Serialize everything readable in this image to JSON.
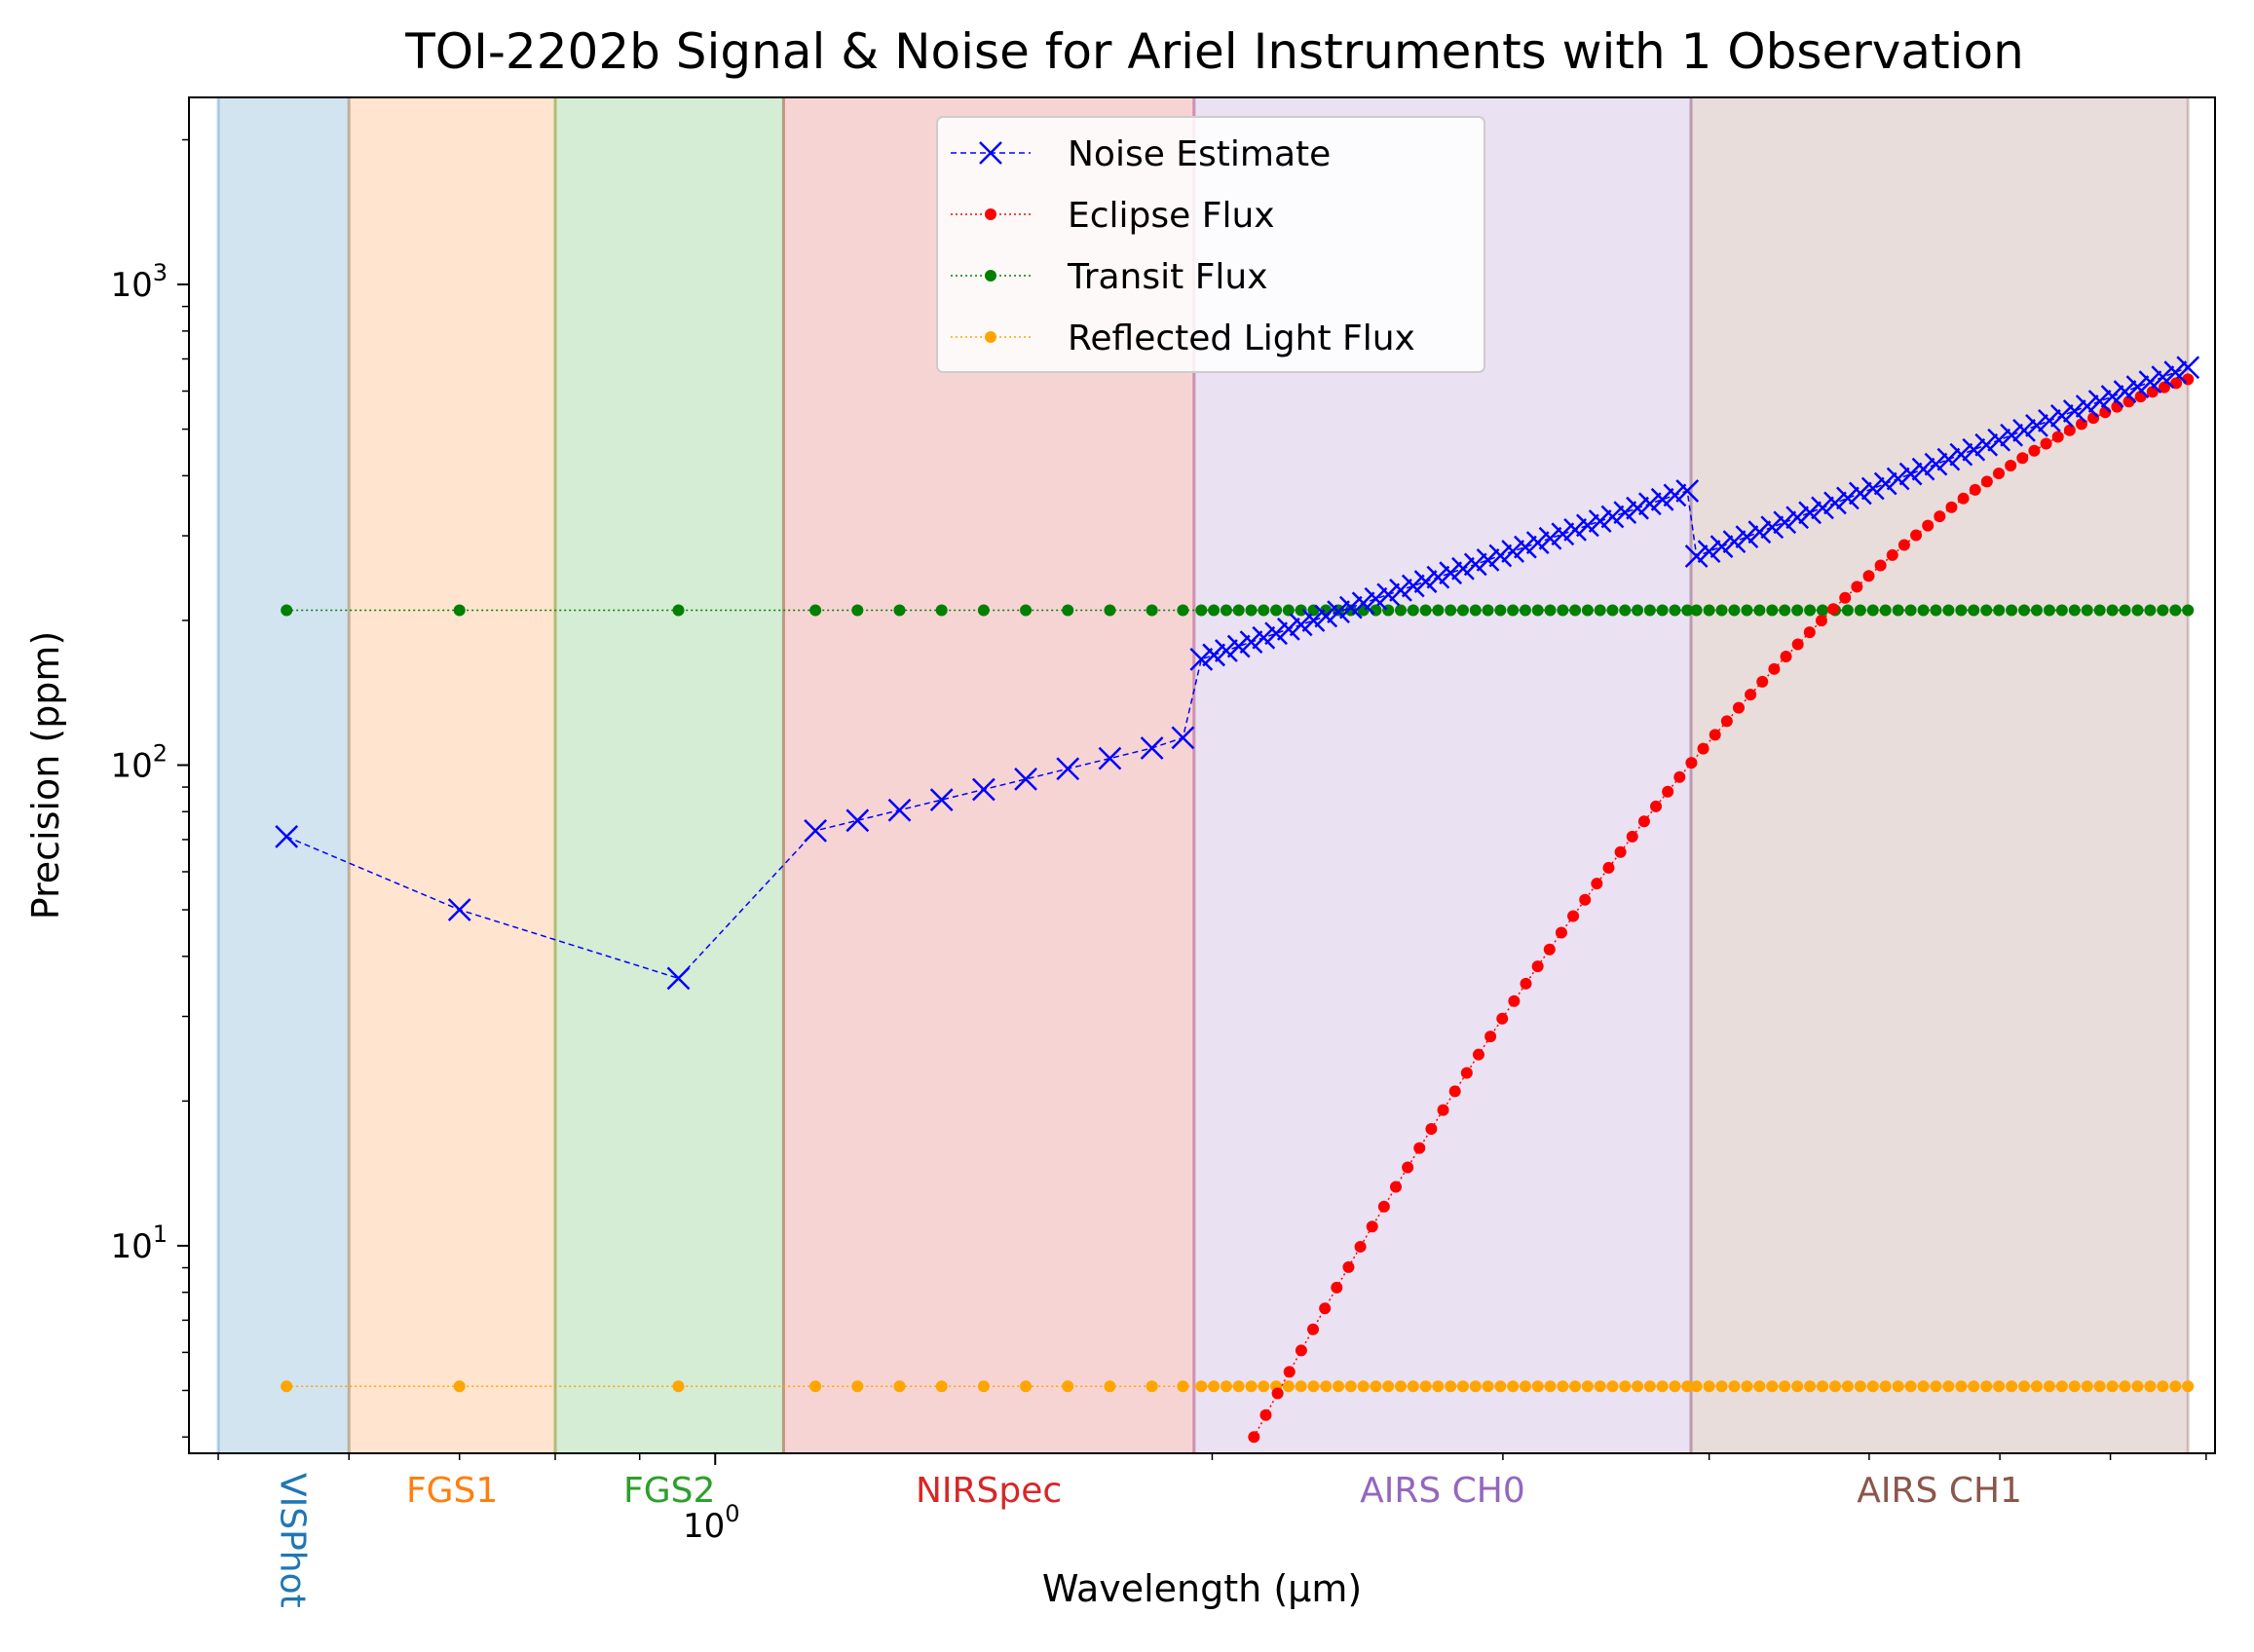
{
  "chart_data": {
    "type": "line",
    "title": "TOI-2202b Signal & Noise for Ariel Instruments with 1 Observation",
    "xlabel": "Wavelength (μm)",
    "ylabel": "Precision (ppm)",
    "xscale": "log",
    "yscale": "log",
    "xlim": [
      0.48,
      8.1
    ],
    "ylim": [
      3.7,
      2450
    ],
    "grid": false,
    "legend_position": "upper-center",
    "x_tick_labels": [
      {
        "value": 1,
        "base": "10",
        "exp": "0"
      }
    ],
    "y_tick_labels": [
      {
        "value": 10,
        "base": "10",
        "exp": "1"
      },
      {
        "value": 100,
        "base": "10",
        "exp": "2"
      },
      {
        "value": 1000,
        "base": "10",
        "exp": "3"
      }
    ],
    "bands": [
      {
        "name": "VISPhot",
        "xmin": 0.5,
        "xmax": 0.6,
        "color": "#1f77b4",
        "label_rotated": true
      },
      {
        "name": "FGS1",
        "xmin": 0.6,
        "xmax": 0.8,
        "color": "#ff7f0e"
      },
      {
        "name": "FGS2",
        "xmin": 0.8,
        "xmax": 1.1,
        "color": "#2ca02c"
      },
      {
        "name": "NIRSpec",
        "xmin": 1.1,
        "xmax": 1.95,
        "color": "#d62728"
      },
      {
        "name": "AIRS CH0",
        "xmin": 1.95,
        "xmax": 3.9,
        "color": "#9467bd"
      },
      {
        "name": "AIRS CH1",
        "xmin": 3.9,
        "xmax": 7.8,
        "color": "#8c564b"
      }
    ],
    "series": [
      {
        "name": "Noise Estimate",
        "color": "#0000ff",
        "marker": "x",
        "linestyle": "dashed",
        "segments": [
          {
            "x": [
              0.55,
              0.7,
              0.95
            ],
            "y": [
              71,
              50,
              36
            ]
          },
          {
            "x": [
              1.15,
              1.95
            ],
            "y_start": 73,
            "y_end": 114,
            "count": 10
          },
          {
            "x": [
              1.95,
              3.9
            ],
            "y_start": 166,
            "y_end": 372,
            "count": 40
          },
          {
            "x": [
              3.9,
              7.8
            ],
            "y_start": 272,
            "y_end": 672,
            "count": 40
          }
        ]
      },
      {
        "name": "Eclipse Flux",
        "color": "#ff0000",
        "marker": "o",
        "linestyle": "dotted",
        "x_start": 2.12,
        "x_end": 7.8,
        "y_start": 4.0,
        "y_end": 635,
        "slope_start": 6.4,
        "slope_end": 1.1,
        "count": 80
      },
      {
        "name": "Transit Flux",
        "color": "#008000",
        "marker": "o",
        "linestyle": "dotted",
        "constant_y": 210
      },
      {
        "name": "Reflected Light Flux",
        "color": "#ffa500",
        "marker": "o",
        "linestyle": "dotted",
        "constant_y": 5.1
      }
    ]
  }
}
